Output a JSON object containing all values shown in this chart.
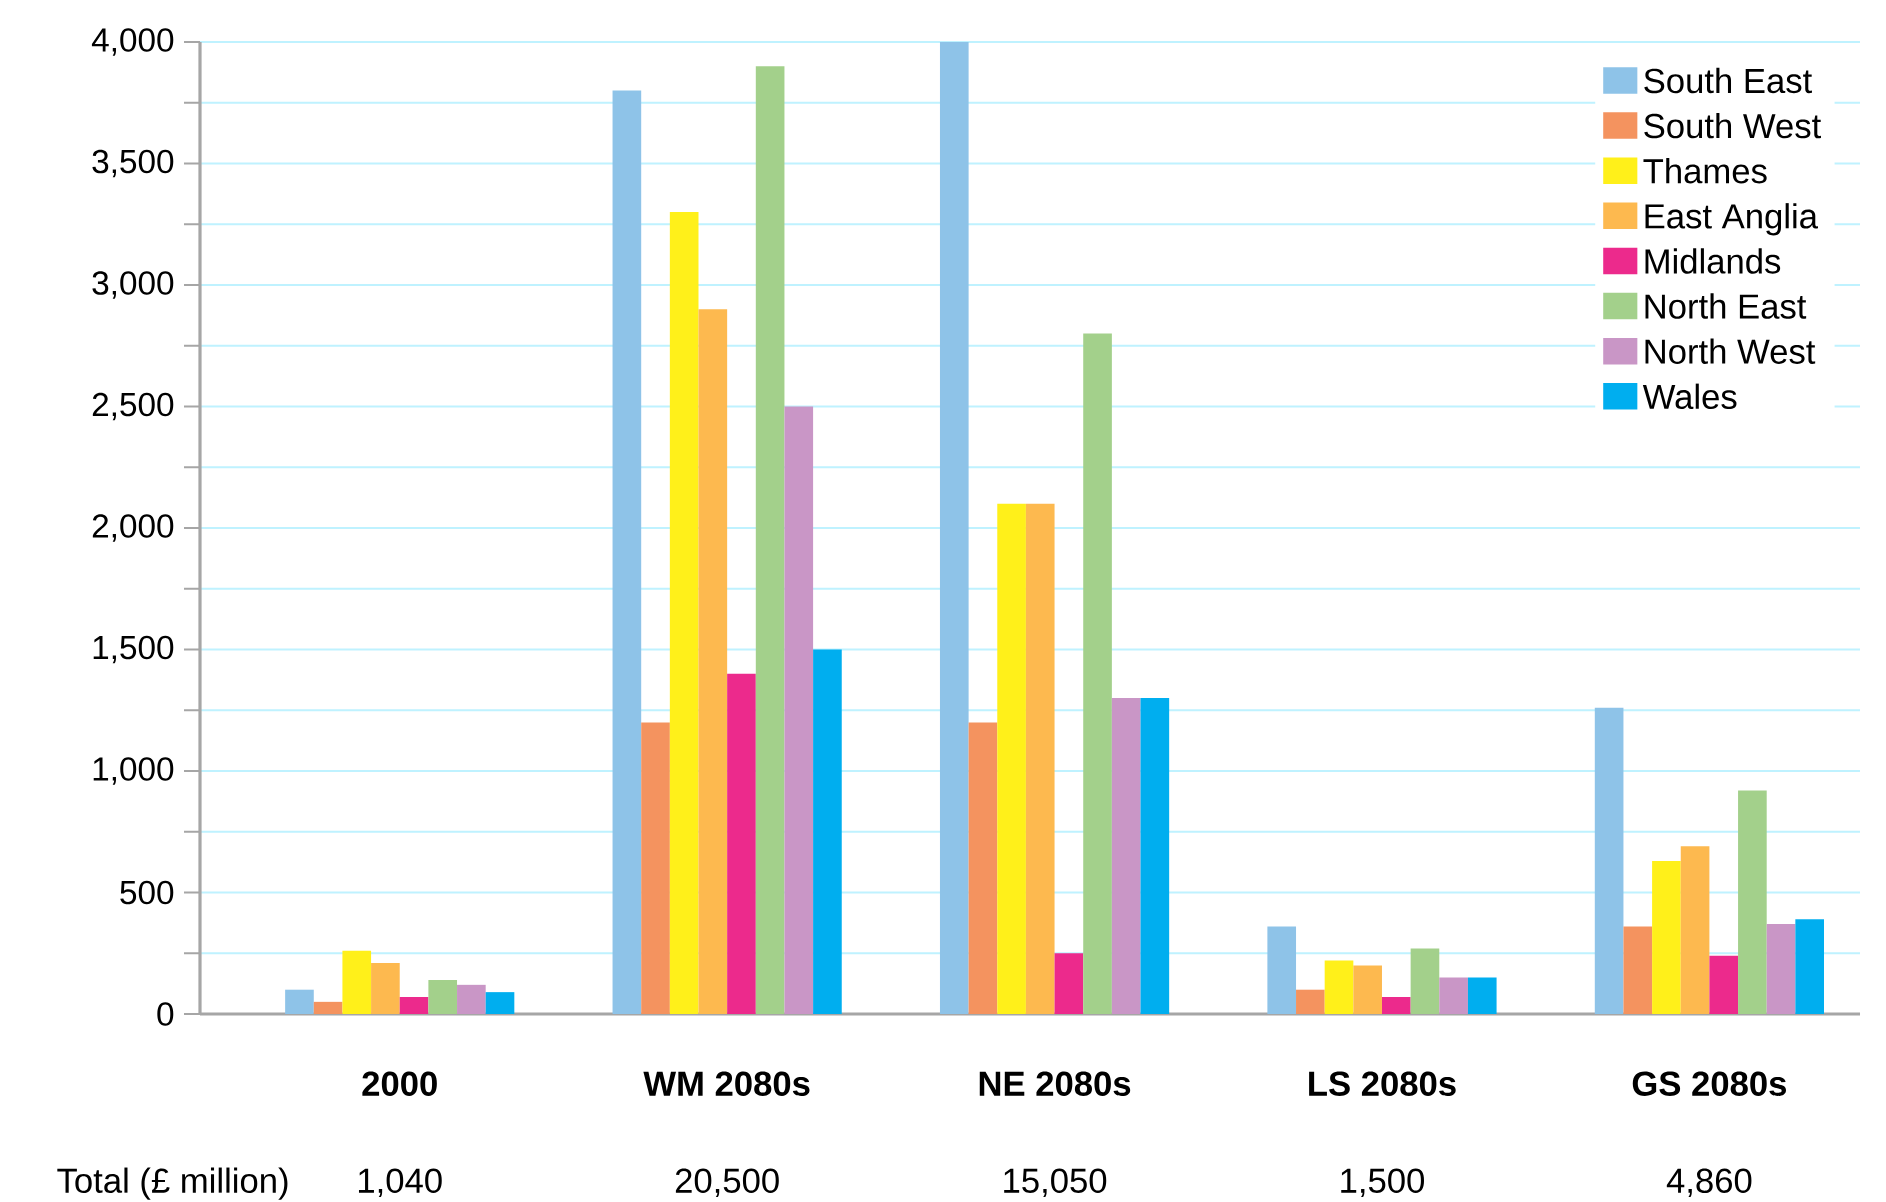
{
  "chart_data": {
    "type": "bar",
    "categories": [
      "2000",
      "WM 2080s",
      "NE 2080s",
      "LS 2080s",
      "GS 2080s"
    ],
    "series": [
      {
        "name": "South East",
        "color": "#8ec3e8",
        "values": [
          100,
          3800,
          4000,
          360,
          1260
        ]
      },
      {
        "name": "South West",
        "color": "#f4935f",
        "values": [
          50,
          1200,
          1200,
          100,
          360
        ]
      },
      {
        "name": "Thames",
        "color": "#fff01a",
        "values": [
          260,
          3300,
          2100,
          220,
          630
        ]
      },
      {
        "name": "East Anglia",
        "color": "#fdb94f",
        "values": [
          210,
          2900,
          2100,
          200,
          690
        ]
      },
      {
        "name": "Midlands",
        "color": "#ec2a8c",
        "values": [
          70,
          1400,
          250,
          70,
          240
        ]
      },
      {
        "name": "North East",
        "color": "#a3d08b",
        "values": [
          140,
          3900,
          2800,
          270,
          920
        ]
      },
      {
        "name": "North West",
        "color": "#c996c6",
        "values": [
          120,
          2500,
          1300,
          150,
          370
        ]
      },
      {
        "name": "Wales",
        "color": "#00aeef",
        "values": [
          90,
          1500,
          1300,
          150,
          390
        ]
      }
    ],
    "ylim": [
      0,
      4000
    ],
    "yticks": [
      0,
      {
        "value": 250,
        "label": null
      },
      500,
      {
        "value": 750,
        "label": null
      },
      {
        "value": 1000,
        "label": "1,000"
      },
      {
        "value": 1250,
        "label": null
      },
      {
        "value": 1500,
        "label": "1,500"
      },
      {
        "value": 1750,
        "label": null
      },
      {
        "value": 2000,
        "label": "2,000"
      },
      {
        "value": 2250,
        "label": null
      },
      {
        "value": 2500,
        "label": "2,500"
      },
      {
        "value": 2750,
        "label": null
      },
      {
        "value": 3000,
        "label": "3,000"
      },
      {
        "value": 3250,
        "label": null
      },
      {
        "value": 3500,
        "label": "3,500"
      },
      {
        "value": 3750,
        "label": null
      },
      {
        "value": 4000,
        "label": "4,000"
      }
    ],
    "grid": "y",
    "legend": "top right",
    "annotations": [
      "Total (£ million)",
      "1,040",
      "20,500",
      "15,050",
      "1,500",
      "4,860"
    ]
  }
}
